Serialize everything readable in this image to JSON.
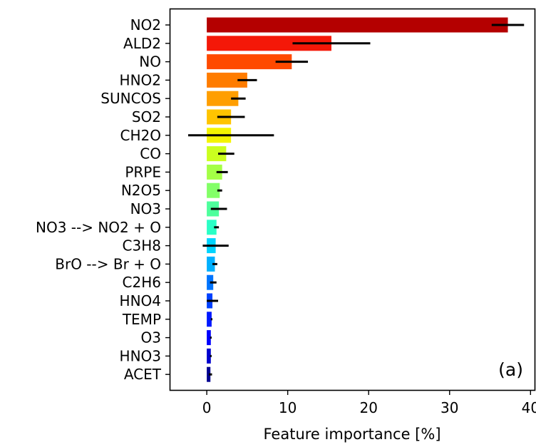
{
  "chart_data": {
    "type": "bar",
    "orientation": "horizontal",
    "categories": [
      "NO2",
      "ALD2",
      "NO",
      "HNO2",
      "SUNCOS",
      "SO2",
      "CH2O",
      "CO",
      "PRPE",
      "N2O5",
      "NO3",
      "NO3 --> NO2 + O",
      "C3H8",
      "BrO --> Br + O",
      "C2H6",
      "HNO4",
      "TEMP",
      "O3",
      "HNO3",
      "ACET"
    ],
    "values": [
      37.2,
      15.4,
      10.5,
      5.0,
      3.9,
      3.0,
      3.0,
      2.4,
      1.9,
      1.6,
      1.5,
      1.2,
      1.1,
      1.0,
      0.8,
      0.7,
      0.6,
      0.5,
      0.5,
      0.45
    ],
    "errors": [
      2.0,
      4.8,
      2.0,
      1.2,
      0.9,
      1.7,
      5.3,
      1.0,
      0.7,
      0.3,
      1.0,
      0.3,
      1.6,
      0.3,
      0.4,
      0.7,
      0.1,
      0.1,
      0.1,
      0.2
    ],
    "colors": [
      "#b40000",
      "#f41808",
      "#ff4a00",
      "#ff7c00",
      "#ff9e00",
      "#ffc400",
      "#f4f400",
      "#cbff1f",
      "#a4ff46",
      "#83ff67",
      "#4dff9c",
      "#2affc6",
      "#00d4ff",
      "#00b0ff",
      "#0074ff",
      "#0040ff",
      "#0018ff",
      "#0000fe",
      "#0000ce",
      "#000090"
    ],
    "error_color": "#000000",
    "title": "",
    "xlabel": "Feature importance [%]",
    "ylabel": "",
    "xlim": [
      -4.5,
      40.5
    ],
    "xticks": [
      0,
      10,
      20,
      30,
      40
    ],
    "grid": false,
    "annotation": "(a)"
  }
}
